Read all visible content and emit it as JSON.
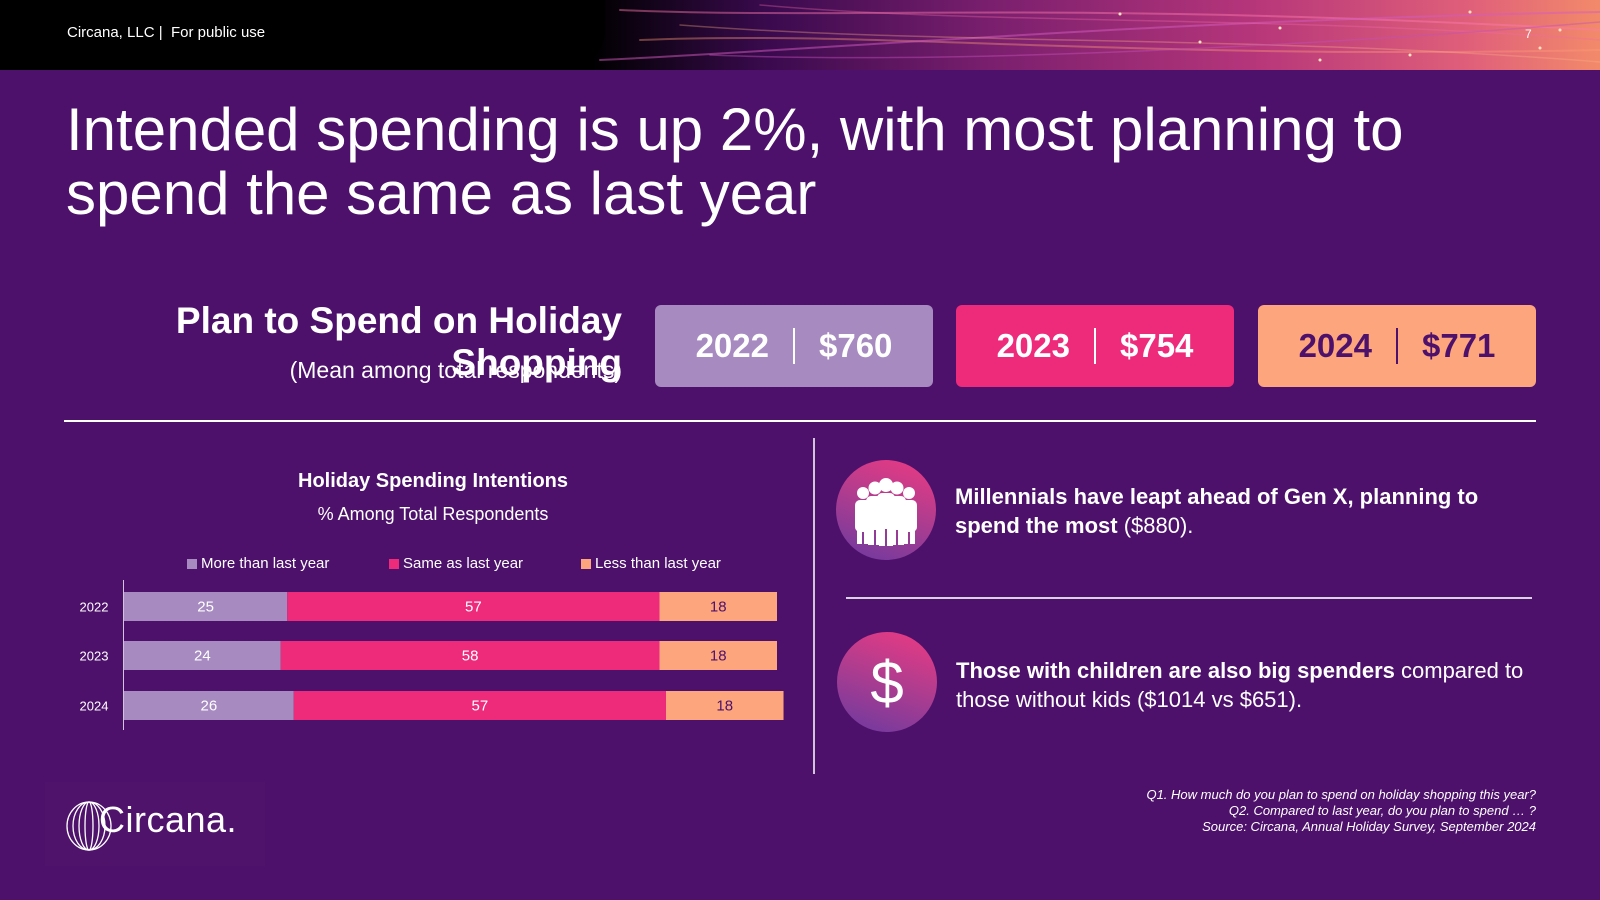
{
  "header": {
    "confidentiality": "Circana, LLC |  For public use",
    "page_number": "7"
  },
  "headline": "Intended spending is up 2%, with most planning to spend the same as last year",
  "plan": {
    "title": "Plan to Spend on Holiday Shopping",
    "subtitle": "(Mean among total respondents)",
    "cards": [
      {
        "year": "2022",
        "amount": "$760",
        "color": "#a68ac0"
      },
      {
        "year": "2023",
        "amount": "$754",
        "color": "#ee2a7b"
      },
      {
        "year": "2024",
        "amount": "$771",
        "color": "#fda57d"
      }
    ]
  },
  "chart_data": {
    "type": "bar",
    "orientation": "horizontal",
    "stacked": true,
    "title": "Holiday Spending Intentions",
    "subtitle": "% Among Total Respondents",
    "categories": [
      "2022",
      "2023",
      "2024"
    ],
    "series": [
      {
        "name": "More than last year",
        "values": [
          25,
          24,
          26
        ],
        "color": "#a68ac0",
        "label_color": "#ffffff"
      },
      {
        "name": "Same as last year",
        "values": [
          57,
          58,
          57
        ],
        "color": "#ee2a7b",
        "label_color": "#ffffff"
      },
      {
        "name": "Less than last year",
        "values": [
          18,
          18,
          18
        ],
        "color": "#fda57d",
        "label_color": "#4d116b"
      }
    ],
    "xlim": [
      0,
      100
    ],
    "legend": "top",
    "grid": false
  },
  "insights": [
    {
      "icon": "people-group-icon",
      "bold": "Millennials have leapt ahead of Gen X, planning to spend the most",
      "rest": " ($880)."
    },
    {
      "icon": "dollar-sign-icon",
      "bold": "Those with children are also big spenders",
      "rest": " compared to those without kids ($1014 vs $651)."
    }
  ],
  "logo": {
    "text": "Circana."
  },
  "source_notes": [
    "Q1. How much do you plan to spend on holiday shopping this year?",
    "Q2. Compared to last year, do you plan to spend … ?",
    "Source: Circana, Annual Holiday Survey, September 2024"
  ]
}
